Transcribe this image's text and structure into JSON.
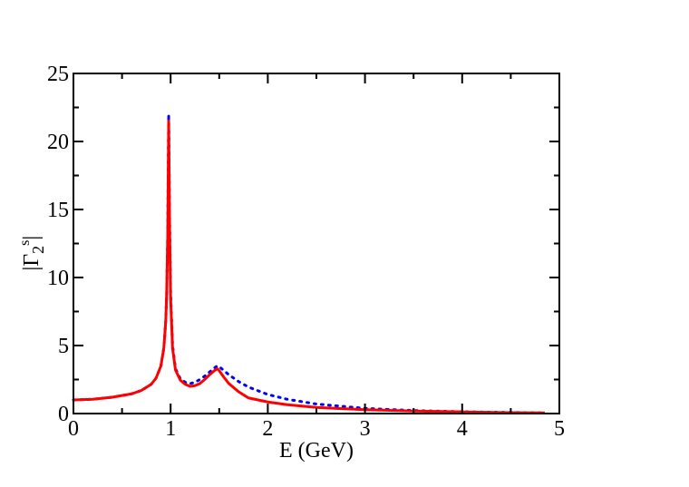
{
  "chart_data": {
    "type": "line",
    "xlabel": "E (GeV)",
    "ylabel": {
      "base": "|Γ",
      "sub": "2",
      "sup": "s",
      "close": "|"
    },
    "xlim": [
      0,
      5
    ],
    "ylim": [
      0,
      25
    ],
    "x_ticks": [
      {
        "value": 0,
        "label": "0"
      },
      {
        "value": 1,
        "label": "1"
      },
      {
        "value": 2,
        "label": "2"
      },
      {
        "value": 3,
        "label": "3"
      },
      {
        "value": 4,
        "label": "4"
      },
      {
        "value": 5,
        "label": "5"
      }
    ],
    "y_ticks": [
      {
        "value": 0,
        "label": "0"
      },
      {
        "value": 5,
        "label": "5"
      },
      {
        "value": 10,
        "label": "10"
      },
      {
        "value": 15,
        "label": "15"
      },
      {
        "value": 20,
        "label": "20"
      },
      {
        "value": 25,
        "label": "25"
      }
    ],
    "x_minor_step": 0.5,
    "y_minor_step": 2.5,
    "grid": false,
    "series": [
      {
        "style": "solid",
        "color": "#ff0000",
        "points": [
          [
            0.0,
            1.0
          ],
          [
            0.2,
            1.05
          ],
          [
            0.4,
            1.2
          ],
          [
            0.6,
            1.45
          ],
          [
            0.7,
            1.7
          ],
          [
            0.8,
            2.15
          ],
          [
            0.85,
            2.6
          ],
          [
            0.9,
            3.5
          ],
          [
            0.93,
            4.8
          ],
          [
            0.95,
            6.8
          ],
          [
            0.96,
            9.0
          ],
          [
            0.97,
            13.0
          ],
          [
            0.98,
            21.5
          ],
          [
            0.99,
            13.5
          ],
          [
            1.0,
            8.5
          ],
          [
            1.02,
            4.8
          ],
          [
            1.05,
            3.2
          ],
          [
            1.1,
            2.45
          ],
          [
            1.15,
            2.15
          ],
          [
            1.2,
            2.0
          ],
          [
            1.25,
            2.05
          ],
          [
            1.3,
            2.2
          ],
          [
            1.35,
            2.5
          ],
          [
            1.4,
            2.85
          ],
          [
            1.45,
            3.15
          ],
          [
            1.48,
            3.3
          ],
          [
            1.5,
            3.15
          ],
          [
            1.55,
            2.65
          ],
          [
            1.6,
            2.2
          ],
          [
            1.7,
            1.6
          ],
          [
            1.8,
            1.15
          ],
          [
            2.0,
            0.85
          ],
          [
            2.2,
            0.65
          ],
          [
            2.5,
            0.45
          ],
          [
            3.0,
            0.28
          ],
          [
            3.5,
            0.18
          ],
          [
            4.0,
            0.12
          ],
          [
            4.5,
            0.07
          ],
          [
            4.85,
            0.05
          ]
        ]
      },
      {
        "style": "dotted",
        "color": "#0000ff",
        "points": [
          [
            0.0,
            1.0
          ],
          [
            0.2,
            1.05
          ],
          [
            0.4,
            1.2
          ],
          [
            0.6,
            1.45
          ],
          [
            0.7,
            1.7
          ],
          [
            0.8,
            2.15
          ],
          [
            0.85,
            2.6
          ],
          [
            0.9,
            3.5
          ],
          [
            0.93,
            4.8
          ],
          [
            0.95,
            6.8
          ],
          [
            0.96,
            9.0
          ],
          [
            0.97,
            13.0
          ],
          [
            0.98,
            22.0
          ],
          [
            0.99,
            14.0
          ],
          [
            1.0,
            8.8
          ],
          [
            1.02,
            5.0
          ],
          [
            1.05,
            3.3
          ],
          [
            1.1,
            2.55
          ],
          [
            1.15,
            2.3
          ],
          [
            1.2,
            2.2
          ],
          [
            1.25,
            2.3
          ],
          [
            1.3,
            2.5
          ],
          [
            1.35,
            2.75
          ],
          [
            1.4,
            3.05
          ],
          [
            1.45,
            3.35
          ],
          [
            1.48,
            3.5
          ],
          [
            1.5,
            3.45
          ],
          [
            1.55,
            3.15
          ],
          [
            1.6,
            2.85
          ],
          [
            1.7,
            2.35
          ],
          [
            1.8,
            1.95
          ],
          [
            2.0,
            1.4
          ],
          [
            2.2,
            1.05
          ],
          [
            2.5,
            0.7
          ],
          [
            3.0,
            0.38
          ],
          [
            3.5,
            0.22
          ],
          [
            4.0,
            0.13
          ],
          [
            4.5,
            0.08
          ],
          [
            4.85,
            0.05
          ]
        ]
      }
    ]
  }
}
